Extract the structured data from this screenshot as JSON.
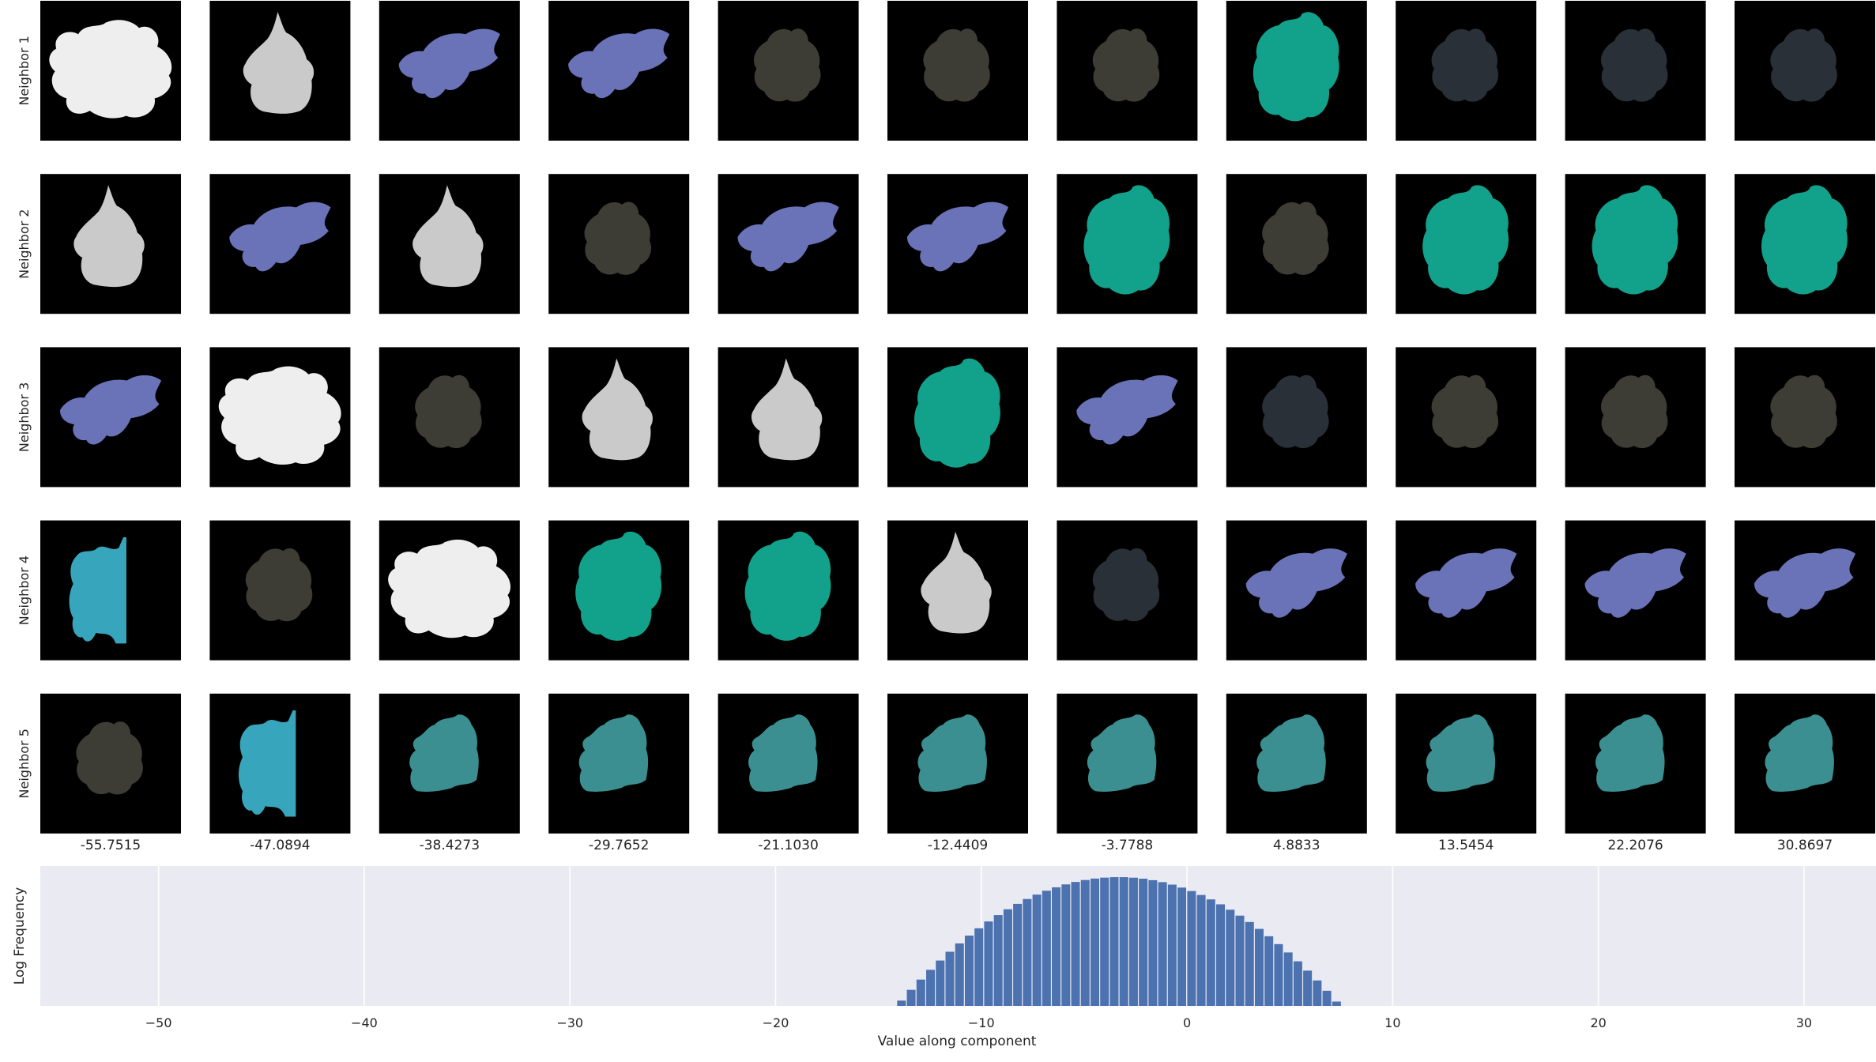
{
  "chart_data": [
    {
      "type": "image-grid",
      "rows": [
        "Neighbor 1",
        "Neighbor 2",
        "Neighbor 3",
        "Neighbor 4",
        "Neighbor 5"
      ],
      "column_values": [
        "-55.7515",
        "-47.0894",
        "-38.4273",
        "-29.7652",
        "-21.1030",
        "-12.4409",
        "-3.7788",
        "4.8833",
        "13.5454",
        "22.2076",
        "30.8697"
      ],
      "cells": [
        [
          "white",
          "light-gray",
          "blue",
          "blue",
          "dark-olive",
          "dark-olive",
          "dark-olive",
          "teal",
          "dark-slate",
          "dark-slate",
          "dark-slate"
        ],
        [
          "light-gray",
          "blue",
          "light-gray",
          "dark-olive",
          "blue",
          "blue",
          "teal",
          "dark-olive",
          "teal",
          "teal",
          "teal"
        ],
        [
          "blue",
          "white",
          "dark-olive",
          "light-gray",
          "light-gray",
          "teal",
          "blue",
          "dark-slate",
          "dark-olive",
          "dark-olive",
          "dark-olive"
        ],
        [
          "cyan",
          "dark-olive",
          "white",
          "teal",
          "teal",
          "light-gray",
          "dark-slate",
          "blue",
          "blue",
          "blue",
          "blue"
        ],
        [
          "dark-olive",
          "cyan",
          "mottled",
          "mottled",
          "mottled",
          "mottled",
          "mottled",
          "mottled",
          "mottled",
          "mottled",
          "mottled"
        ]
      ],
      "colors": {
        "white": "#eeeeee",
        "light-gray": "#cacaca",
        "blue": "#6a72b8",
        "dark-olive": "#3d3d36",
        "teal": "#12a18a",
        "dark-slate": "#2a3038",
        "cyan": "#37a6bd",
        "mottled": "#3c8f90"
      },
      "cell_background": "#000000"
    },
    {
      "type": "bar",
      "xlabel": "Value along component",
      "ylabel": "Log Frequency",
      "xlim": [
        -55.75,
        33.5
      ],
      "x_ticks": [
        -50,
        -40,
        -30,
        -20,
        -10,
        0,
        10,
        20,
        30
      ],
      "x_tick_labels": [
        "−50",
        "−40",
        "−30",
        "−20",
        "−10",
        "0",
        "10",
        "20",
        "30"
      ],
      "grid": true,
      "background": "#eaeaf2",
      "bar_color": "#4c72b0",
      "distribution": {
        "mean": -3.3,
        "std": 2.9
      },
      "bin_range": [
        -15.5,
        7.5
      ],
      "bin_width": 0.47
    }
  ]
}
